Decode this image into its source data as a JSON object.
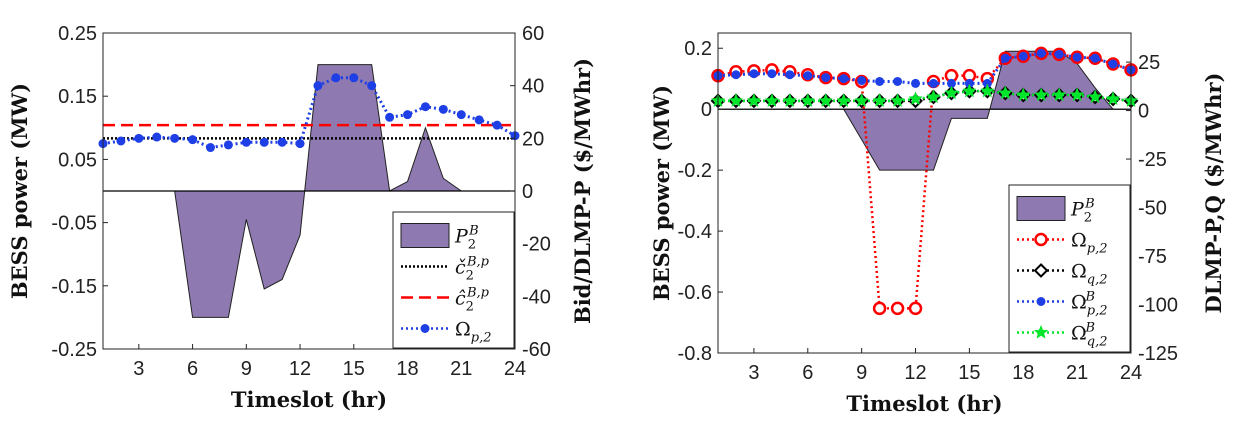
{
  "colors": {
    "bar_fill": "#8e79b0",
    "red": "#ff0000",
    "blue": "#1f3fe6",
    "black": "#000000",
    "green": "#00e62a",
    "ref_black": "#000000"
  },
  "chart_data": [
    {
      "type": "line",
      "xlabel": "Timeslot (hr)",
      "ylabel_left": "BESS power (MW)",
      "ylabel_right": "Bid/DLMP-P ($/MWhr)",
      "x": [
        1,
        2,
        3,
        4,
        5,
        6,
        7,
        8,
        9,
        10,
        11,
        12,
        13,
        14,
        15,
        16,
        17,
        18,
        19,
        20,
        21,
        22,
        23,
        24
      ],
      "xlim": [
        1,
        24
      ],
      "xticks": [
        3,
        6,
        9,
        12,
        15,
        18,
        21,
        24
      ],
      "ylim_left": [
        -0.25,
        0.25
      ],
      "yticks_left": [
        "0.25",
        "0.15",
        "0.05",
        "-0.05",
        "-0.15",
        "-0.25"
      ],
      "ylim_right": [
        -60,
        60
      ],
      "yticks_right": [
        "60",
        "40",
        "20",
        "0",
        "-20",
        "-40",
        "-60"
      ],
      "legend_position": "bottom-right",
      "series": [
        {
          "name": "P_2^B",
          "axis": "left",
          "style": "area",
          "values": [
            0,
            0,
            0,
            0,
            0,
            -0.2,
            -0.2,
            -0.2,
            -0.045,
            -0.155,
            -0.14,
            -0.07,
            0.2,
            0.2,
            0.2,
            0.2,
            0,
            0.015,
            0.1,
            0.02,
            0,
            0,
            0,
            0
          ]
        },
        {
          "name": "c_check_2^{B,p}",
          "axis": "right",
          "style": "dotted",
          "values": [
            20,
            20,
            20,
            20,
            20,
            20,
            20,
            20,
            20,
            20,
            20,
            20,
            20,
            20,
            20,
            20,
            20,
            20,
            20,
            20,
            20,
            20,
            20,
            20
          ]
        },
        {
          "name": "c_hat_2^{B,p}",
          "axis": "right",
          "style": "dashed",
          "values": [
            25,
            25,
            25,
            25,
            25,
            25,
            25,
            25,
            25,
            25,
            25,
            25,
            25,
            25,
            25,
            25,
            25,
            25,
            25,
            25,
            25,
            25,
            25,
            25
          ]
        },
        {
          "name": "Omega_{p,2}",
          "axis": "right",
          "style": "dotted-marker",
          "values": [
            18,
            19,
            20,
            20.5,
            20,
            19.5,
            16.5,
            17.5,
            18.5,
            18.5,
            18.5,
            18,
            40,
            43,
            43,
            40,
            28,
            29,
            32,
            31,
            29,
            27,
            25,
            21
          ]
        }
      ]
    },
    {
      "type": "line",
      "xlabel": "Timeslot (hr)",
      "ylabel_left": "BESS power (MW)",
      "ylabel_right": "DLMP-P,Q ($/MWhr)",
      "x": [
        1,
        2,
        3,
        4,
        5,
        6,
        7,
        8,
        9,
        10,
        11,
        12,
        13,
        14,
        15,
        16,
        17,
        18,
        19,
        20,
        21,
        22,
        23,
        24
      ],
      "xlim": [
        1,
        24
      ],
      "xticks": [
        3,
        6,
        9,
        12,
        15,
        18,
        21,
        24
      ],
      "ylim_left": [
        -0.8,
        0.25
      ],
      "yticks_left": [
        "0.2",
        "0",
        "-0.2",
        "-0.4",
        "-0.6",
        "-0.8"
      ],
      "ylim_right": [
        -125,
        40
      ],
      "yticks_right": [
        "25",
        "0",
        "-25",
        "-50",
        "-75",
        "-100",
        "-125"
      ],
      "legend_position": "bottom-right",
      "series": [
        {
          "name": "P_2^B",
          "axis": "left",
          "style": "area",
          "values": [
            0,
            0,
            0,
            0,
            0,
            0,
            0,
            0,
            -0.1,
            -0.2,
            -0.2,
            -0.2,
            -0.2,
            -0.03,
            -0.03,
            -0.03,
            0.19,
            0.19,
            0.19,
            0.19,
            0.15,
            0.07,
            0,
            0
          ]
        },
        {
          "name": "Omega_{p,2}",
          "axis": "right",
          "style": "dotted-circle",
          "values": [
            18,
            20,
            20.5,
            21,
            20,
            18.5,
            17,
            16.5,
            15,
            -102,
            -102,
            -102,
            15,
            18,
            18,
            16.5,
            27,
            28,
            29.5,
            29,
            27.5,
            27,
            24,
            21
          ]
        },
        {
          "name": "Omega_{q,2}",
          "axis": "right",
          "style": "dotted-diamond",
          "values": [
            5,
            5,
            5,
            5,
            5,
            5,
            5,
            5,
            5,
            5,
            5,
            5,
            7,
            9,
            10,
            10,
            9,
            8,
            8,
            8,
            8,
            7,
            6,
            5
          ]
        },
        {
          "name": "Omega_{p,2}^B",
          "axis": "right",
          "style": "dotted-dot",
          "values": [
            18,
            18.5,
            19,
            19,
            18.5,
            18,
            17,
            16.5,
            15.5,
            15,
            15,
            14,
            14,
            14,
            14,
            14,
            27,
            28,
            29.5,
            29,
            27.5,
            27,
            24,
            21
          ]
        },
        {
          "name": "Omega_{q,2}^B",
          "axis": "right",
          "style": "dotted-star",
          "values": [
            5,
            5,
            5,
            5,
            5,
            5,
            5,
            5,
            5,
            5,
            5,
            6,
            7,
            9,
            10,
            10,
            9,
            8,
            8,
            8,
            8,
            7,
            6,
            5
          ]
        }
      ]
    }
  ]
}
